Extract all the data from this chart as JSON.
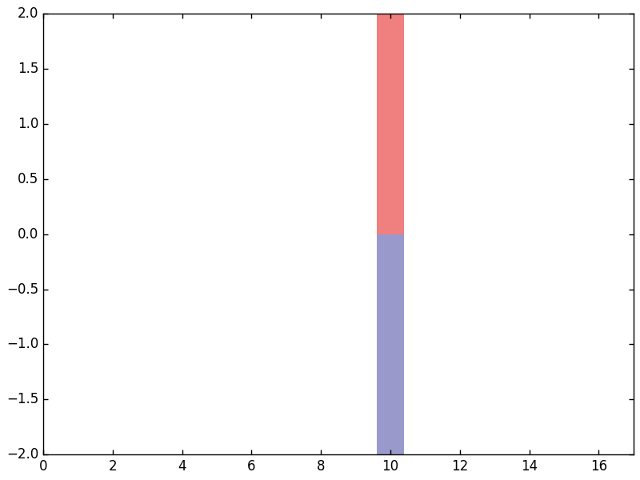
{
  "x_position": 10,
  "bar_width": 0.8,
  "positive_value": 2.0,
  "negative_value": -2.0,
  "positive_color": "#f08080",
  "negative_color": "#9999cc",
  "xlim": [
    0,
    17
  ],
  "ylim": [
    -2.0,
    2.0
  ],
  "xticks": [
    0,
    2,
    4,
    6,
    8,
    10,
    12,
    14,
    16
  ],
  "yticks": [
    -2.0,
    -1.5,
    -1.0,
    -0.5,
    0.0,
    0.5,
    1.0,
    1.5,
    2.0
  ],
  "background_color": "#ffffff",
  "figsize": [
    8.0,
    6.0
  ],
  "dpi": 100
}
